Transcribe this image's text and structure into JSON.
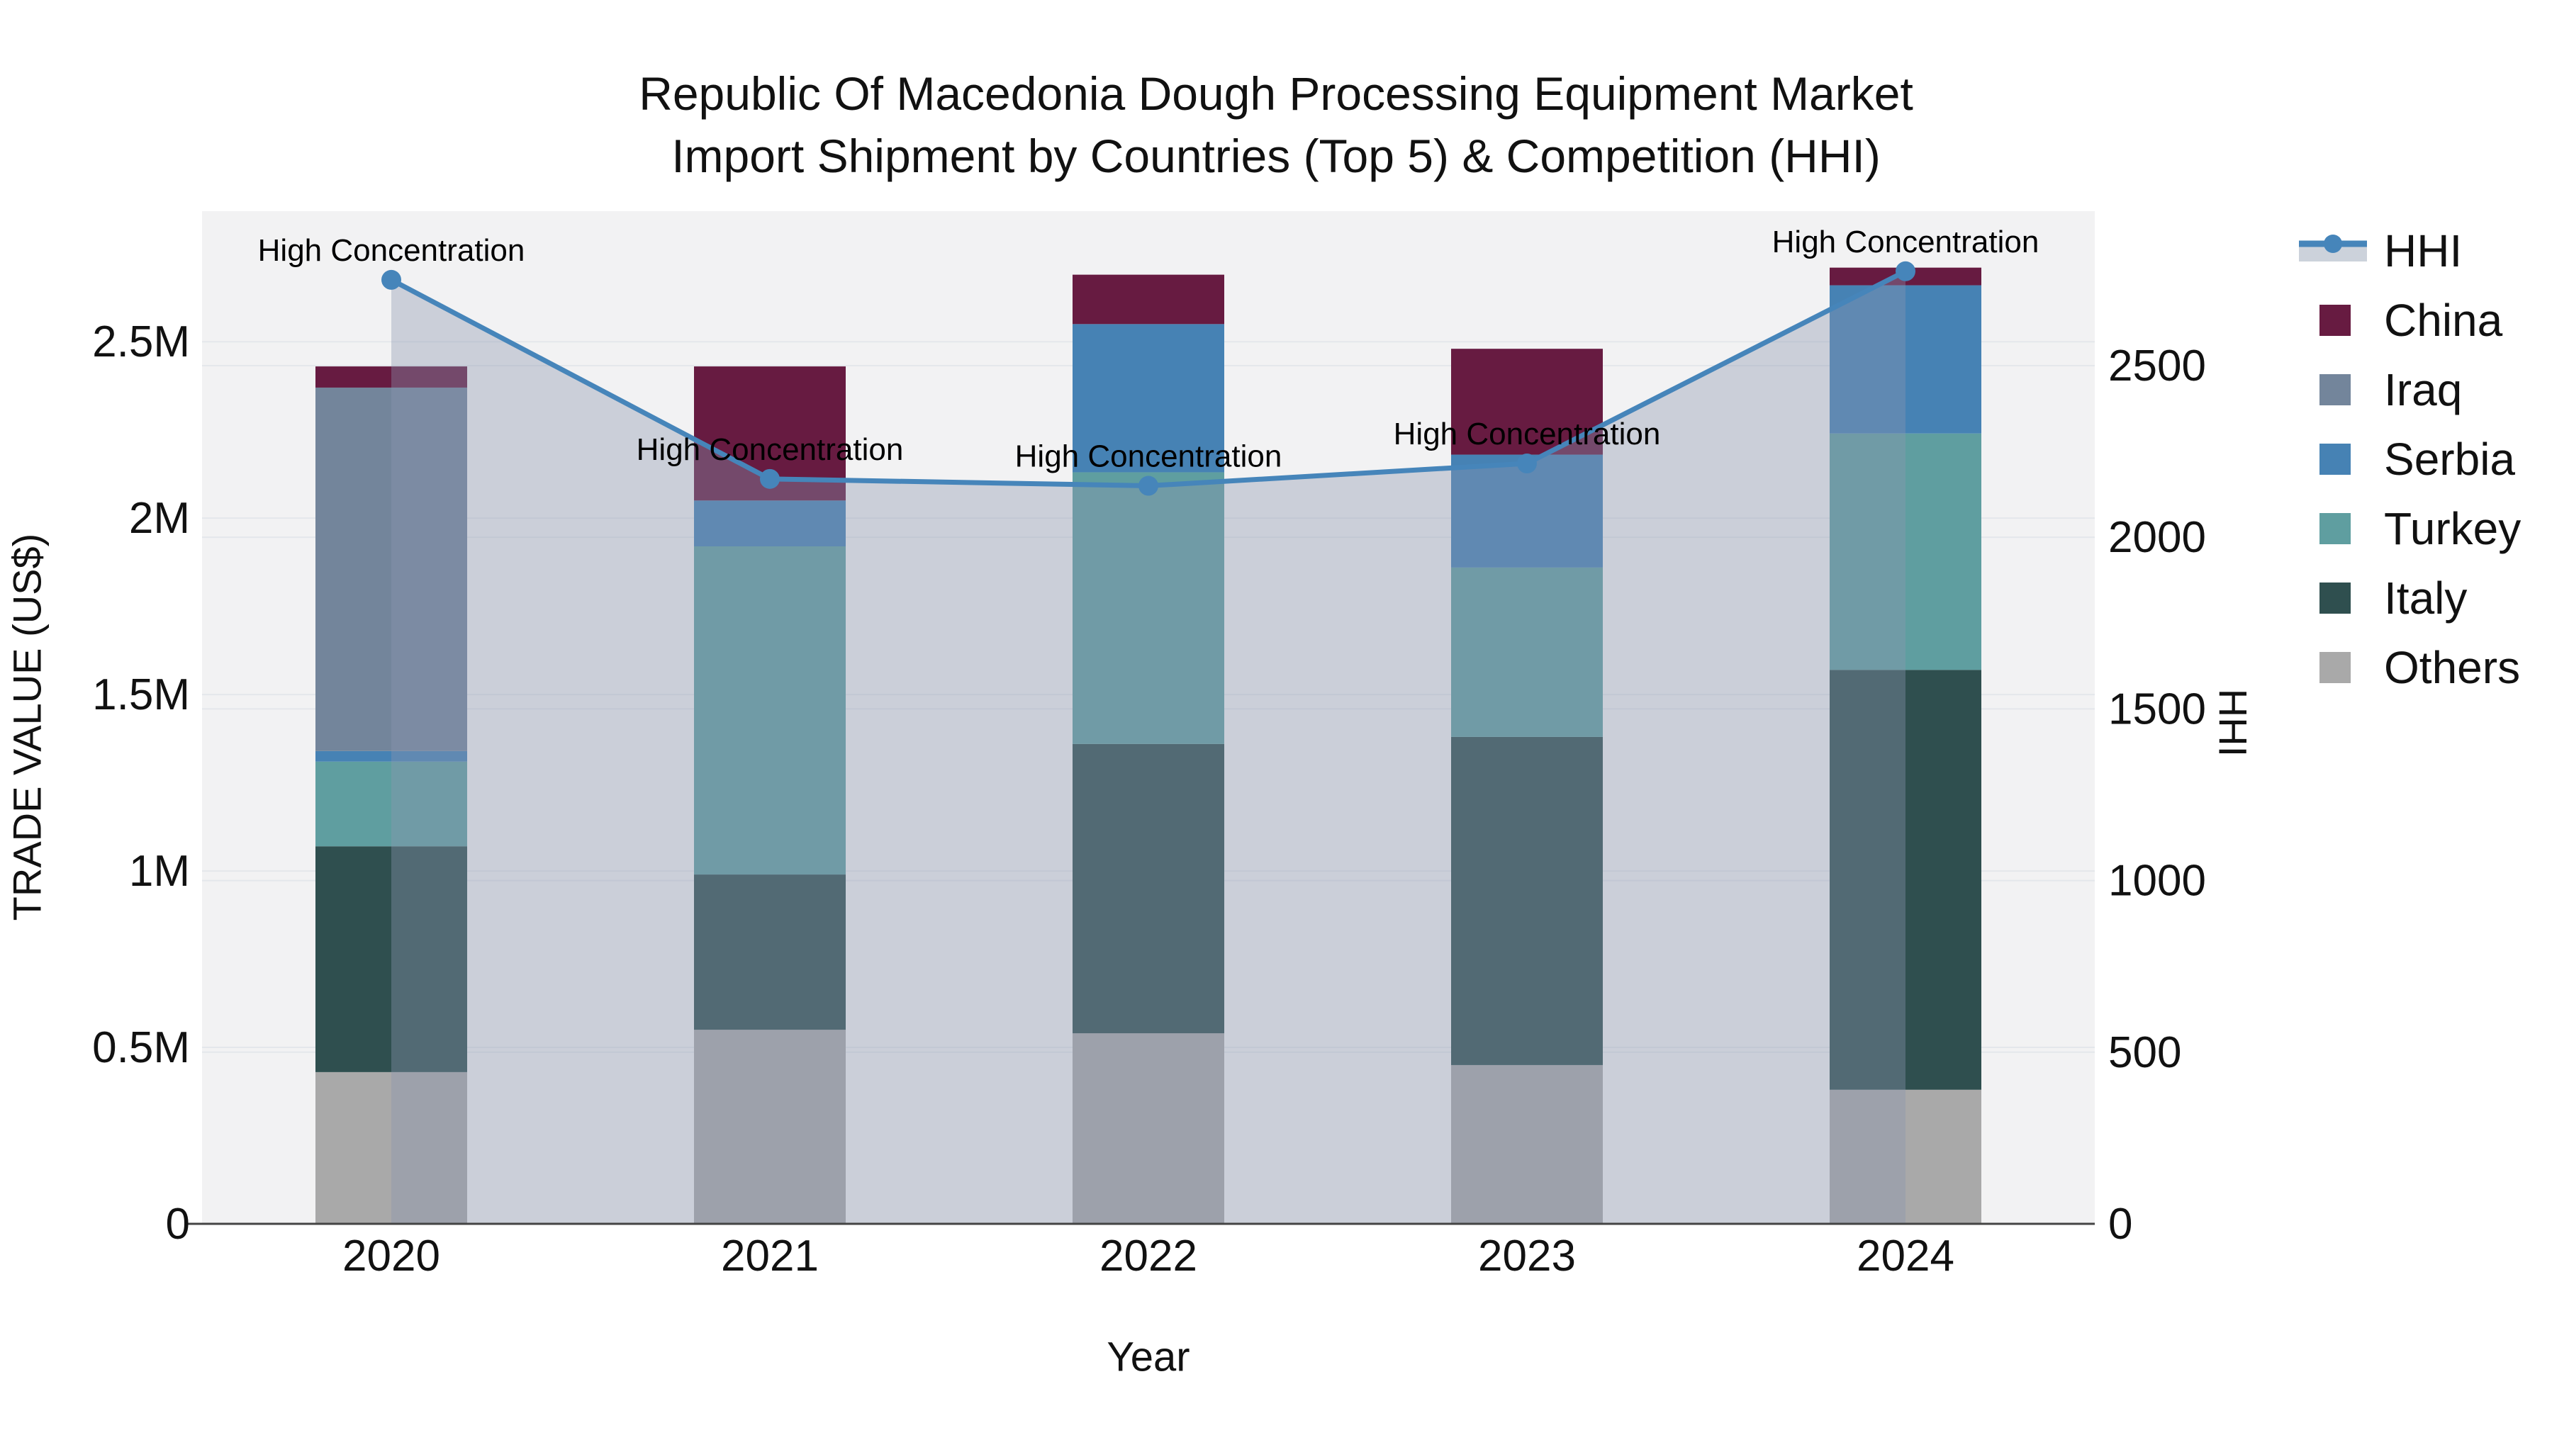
{
  "title": {
    "line1": "Republic Of Macedonia Dough Processing Equipment Market",
    "line2": "Import Shipment by Countries (Top 5) & Competition (HHI)"
  },
  "axes": {
    "left": {
      "title": "TRADE VALUE (US$)",
      "max": 2870000,
      "ticks": [
        {
          "value": 0,
          "label": "0"
        },
        {
          "value": 500000,
          "label": "0.5M"
        },
        {
          "value": 1000000,
          "label": "1M"
        },
        {
          "value": 1500000,
          "label": "1.5M"
        },
        {
          "value": 2000000,
          "label": "2M"
        },
        {
          "value": 2500000,
          "label": "2.5M"
        }
      ]
    },
    "right": {
      "title": "HHI",
      "max": 2950,
      "ticks": [
        {
          "value": 0,
          "label": "0"
        },
        {
          "value": 500,
          "label": "500"
        },
        {
          "value": 1000,
          "label": "1000"
        },
        {
          "value": 1500,
          "label": "1500"
        },
        {
          "value": 2000,
          "label": "2000"
        },
        {
          "value": 2500,
          "label": "2500"
        }
      ]
    },
    "x": {
      "title": "Year",
      "categories": [
        "2020",
        "2021",
        "2022",
        "2023",
        "2024"
      ]
    }
  },
  "legend": {
    "items": [
      {
        "name": "HHI",
        "type": "line-marker"
      },
      {
        "name": "China",
        "type": "swatch",
        "color": "#671B41"
      },
      {
        "name": "Iraq",
        "type": "swatch",
        "color": "#73859B"
      },
      {
        "name": "Serbia",
        "type": "swatch",
        "color": "#4682B4"
      },
      {
        "name": "Turkey",
        "type": "swatch",
        "color": "#5F9EA0"
      },
      {
        "name": "Italy",
        "type": "swatch",
        "color": "#2F4F4F"
      },
      {
        "name": "Others",
        "type": "swatch",
        "color": "#A9A9A9"
      }
    ]
  },
  "colors": {
    "hhi_line": "#4685BA",
    "hhi_area_fill": "rgba(140,150,175,0.38)",
    "legend_band": "#ccd2db",
    "plot_bg": "#f2f2f3",
    "grid": "#e4e7eb",
    "axis_line": "#444444",
    "tick_text": "#111111",
    "annotation_text": "#000000"
  },
  "chart_data": {
    "type": "bar+line",
    "title": "Republic Of Macedonia Dough Processing Equipment Market — Import Shipment by Countries (Top 5) & Competition (HHI)",
    "xlabel": "Year",
    "ylabel_left": "TRADE VALUE (US$)",
    "ylabel_right": "HHI",
    "categories": [
      2020,
      2021,
      2022,
      2023,
      2024
    ],
    "ylim_left": [
      0,
      2870000
    ],
    "ylim_right": [
      0,
      2950
    ],
    "grid": true,
    "legend_position": "right",
    "stack_order_bottom_to_top": [
      "Others",
      "Italy",
      "Turkey",
      "Serbia",
      "Iraq",
      "China"
    ],
    "series": [
      {
        "name": "China",
        "axis": "left",
        "stack": true,
        "color": "#671B41",
        "values": [
          60000,
          380000,
          140000,
          300000,
          50000
        ]
      },
      {
        "name": "Iraq",
        "axis": "left",
        "stack": true,
        "color": "#73859B",
        "values": [
          1030000,
          0,
          0,
          0,
          0
        ]
      },
      {
        "name": "Serbia",
        "axis": "left",
        "stack": true,
        "color": "#4682B4",
        "values": [
          30000,
          130000,
          420000,
          320000,
          420000
        ]
      },
      {
        "name": "Turkey",
        "axis": "left",
        "stack": true,
        "color": "#5F9EA0",
        "values": [
          240000,
          930000,
          770000,
          480000,
          670000
        ]
      },
      {
        "name": "Italy",
        "axis": "left",
        "stack": true,
        "color": "#2F4F4F",
        "values": [
          640000,
          440000,
          820000,
          930000,
          1190000
        ]
      },
      {
        "name": "Others",
        "axis": "left",
        "stack": true,
        "color": "#A9A9A9",
        "values": [
          430000,
          550000,
          540000,
          450000,
          380000
        ]
      }
    ],
    "totals_by_year": [
      2430000,
      2430000,
      2690000,
      2480000,
      2710000
    ],
    "hhi": {
      "name": "HHI",
      "axis": "right",
      "type": "line+markers+area",
      "color": "#4685BA",
      "values": [
        2750,
        2170,
        2150,
        2215,
        2775
      ]
    },
    "annotations": [
      {
        "x": 2020,
        "text": "High Concentration"
      },
      {
        "x": 2021,
        "text": "High Concentration"
      },
      {
        "x": 2022,
        "text": "High Concentration"
      },
      {
        "x": 2023,
        "text": "High Concentration"
      },
      {
        "x": 2024,
        "text": "High Concentration"
      }
    ]
  }
}
